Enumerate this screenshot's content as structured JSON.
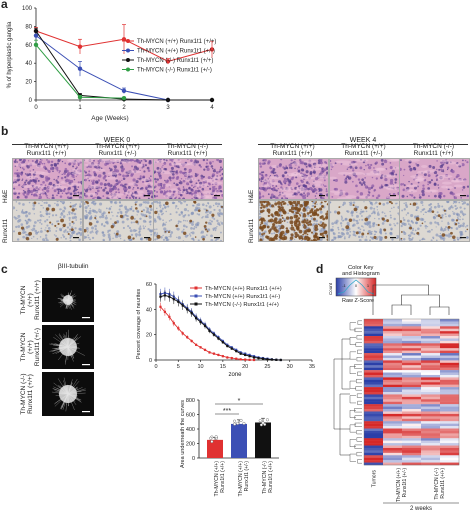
{
  "panels": {
    "a": "a",
    "b": "b",
    "c": "c",
    "d": "d"
  },
  "chart_data": [
    {
      "type": "line",
      "xlabel": "Age (Weeks)",
      "ylabel": "% of hyperplastic ganglia",
      "xlim": [
        0,
        4
      ],
      "ylim": [
        0,
        100
      ],
      "xticks": [
        "0",
        "1",
        "2",
        "3",
        "4"
      ],
      "yticks": [
        "0",
        "20",
        "40",
        "60",
        "80",
        "100"
      ],
      "series": [
        {
          "name": "Th-MYCN (+/+) Runx1t1 (+/+)",
          "color": "#e03131",
          "x": [
            0,
            1,
            2,
            3,
            4
          ],
          "y": [
            75,
            58,
            66,
            42,
            55
          ],
          "err": [
            4,
            8,
            16,
            3,
            9
          ]
        },
        {
          "name": "Th-MYCN (+/+) Runx1t1 (+/-)",
          "color": "#3b4fb5",
          "x": [
            0,
            1,
            2,
            3
          ],
          "y": [
            70,
            34,
            10,
            0
          ],
          "err": [
            4,
            8,
            3,
            0
          ]
        },
        {
          "name": "Th-MYCN (-/-) Runx1t1 (+/+)",
          "color": "#111111",
          "x": [
            0,
            1,
            2,
            3,
            4
          ],
          "y": [
            75,
            5,
            1,
            0,
            0
          ],
          "err": [
            3,
            2,
            1,
            0,
            0
          ]
        },
        {
          "name": "Th-MYCN (-/-) Runx1t1 (+/-)",
          "color": "#2f9e44",
          "x": [
            0,
            1,
            2
          ],
          "y": [
            60,
            3,
            2
          ],
          "err": [
            5,
            2,
            1
          ]
        }
      ]
    },
    {
      "type": "line",
      "xlabel": "zone",
      "ylabel": "Percent coverage of neurites",
      "xlim": [
        0,
        35
      ],
      "ylim": [
        0,
        60
      ],
      "xticks": [
        "0",
        "5",
        "10",
        "15",
        "20",
        "25",
        "30",
        "35"
      ],
      "yticks": [
        "0",
        "20",
        "40",
        "60"
      ],
      "series": [
        {
          "name": "Th-MYCN (+/+) Runx1t1 (+/+)",
          "color": "#e03131",
          "x": [
            1,
            2,
            3,
            4,
            5,
            6,
            7,
            8,
            9,
            10,
            11,
            12,
            13,
            14,
            15,
            16,
            17,
            18,
            19,
            20,
            21,
            22
          ],
          "y": [
            42,
            38,
            34,
            29,
            25,
            21,
            18,
            15,
            12,
            10,
            8,
            6,
            5,
            4,
            3,
            2,
            1.5,
            1,
            0.5,
            0.3,
            0.1,
            0
          ]
        },
        {
          "name": "Th-MYCN (+/+) Runx1t1 (+/-)",
          "color": "#3b4fb5",
          "x": [
            1,
            2,
            3,
            4,
            5,
            6,
            7,
            8,
            9,
            10,
            11,
            12,
            13,
            14,
            15,
            16,
            17,
            18,
            19,
            20,
            21,
            22,
            23,
            24,
            25,
            26,
            27,
            28
          ],
          "y": [
            52,
            53,
            52,
            50,
            47,
            44,
            41,
            38,
            34,
            31,
            28,
            24,
            21,
            18,
            15,
            12,
            10,
            8,
            6,
            5,
            4,
            3,
            2,
            1.5,
            1,
            0.5,
            0.2,
            0
          ]
        },
        {
          "name": "Th-MYCN (-/-) Runx1t1 (+/+)",
          "color": "#111111",
          "x": [
            1,
            2,
            3,
            4,
            5,
            6,
            7,
            8,
            9,
            10,
            11,
            12,
            13,
            14,
            15,
            16,
            17,
            18,
            19,
            20,
            21,
            22,
            23,
            24,
            25,
            26,
            27,
            28
          ],
          "y": [
            50,
            51,
            50,
            48,
            46,
            43,
            40,
            37,
            33,
            30,
            27,
            23,
            20,
            17,
            14,
            11,
            9,
            7,
            5,
            4,
            3,
            2,
            1.5,
            1,
            0.5,
            0.3,
            0.1,
            0
          ]
        }
      ]
    },
    {
      "type": "bar",
      "ylabel": "Area underneath the curves",
      "ylim": [
        0,
        800
      ],
      "yticks": [
        "0",
        "200",
        "400",
        "600",
        "800"
      ],
      "categories": [
        "Th-MYCN (+/+) Runx1t1 (+/+)",
        "Th-MYCN (+/+) Runx1t1 (+/-)",
        "Th-MYCN (-/-) Runx1t1 (+/+)"
      ],
      "values": [
        250,
        470,
        490
      ],
      "colors": [
        "#e03131",
        "#3b4fb5",
        "#111111"
      ],
      "sig": [
        "***",
        "*"
      ]
    }
  ],
  "panel_b": {
    "week0": "WEEK 0",
    "week4": "WEEK 4",
    "columns": [
      "Th-MYCN (+/+)\nRunx1t1 (+/+)",
      "Th-MYCN (+/+)\nRunx1t1 (+/-)",
      "Th-MYCN (-/-)\nRunx1t1 (+/+)"
    ],
    "rows": [
      "H&E",
      "Runx1t1"
    ]
  },
  "panel_c": {
    "stain": "βIII-tubulin",
    "rows": [
      "Th-MYCN (+/+)\nRunx1t1 (+/+)",
      "Th-MYCN (+/+)\nRunx1t1 (+/-)",
      "Th-MYCN (-/-)\nRunx1t1 (+/+)"
    ]
  },
  "panel_d": {
    "color_key_title": "Color Key and Histogram",
    "count_label": "Count",
    "zscore_label": "Raw Z-Score",
    "key_ticks": [
      "-1",
      "0",
      "1"
    ],
    "col_labels": [
      "Tumors",
      "Th-MYCN (+/+) Runx1t1 (+/-)",
      "Th-MYCN (-/-) Runx1t1 (+/+)"
    ],
    "group_label": "2 weeks"
  }
}
